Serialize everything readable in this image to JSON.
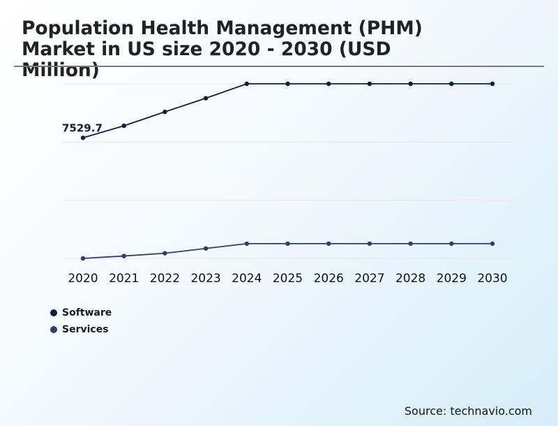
{
  "title": "Population Health Management (PHM) Market in US size 2020 - 2030 (USD Million)",
  "source": "Source: technavio.com",
  "colors": {
    "software": "#0d1f3f",
    "services": "#2c3e6b",
    "grid": "#e6e6e6"
  },
  "chart_data": {
    "type": "line",
    "title": "Population Health Management (PHM) Market in US size 2020 - 2030 (USD Million)",
    "x": [
      "2020",
      "2021",
      "2022",
      "2023",
      "2024",
      "2025",
      "2026",
      "2027",
      "2028",
      "2029",
      "2030"
    ],
    "ylim": [
      0,
      12000
    ],
    "grid": true,
    "legend": "bottom-left",
    "series": [
      {
        "name": "Software",
        "values": [
          7529.7,
          8280,
          9150,
          10000,
          10900,
          10900,
          10900,
          10900,
          10900,
          10900,
          10900
        ]
      },
      {
        "name": "Services",
        "values": [
          0,
          150,
          320,
          620,
          920,
          920,
          920,
          920,
          920,
          920,
          920
        ]
      }
    ],
    "annotations": [
      {
        "series": "Software",
        "x": "2020",
        "text": "7529.7"
      }
    ]
  }
}
